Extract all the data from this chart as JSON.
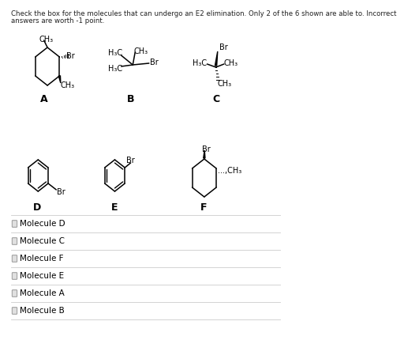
{
  "title_line1": "Check the box for the molecules that can undergo an E2 elimination. Only 2 of the 6 shown are able to. Incorrect",
  "title_line2": "answers are worth -1 point.",
  "background_color": "#ffffff",
  "text_color": "#000000",
  "checkbox_items": [
    "Molecule D",
    "Molecule C",
    "Molecule F",
    "Molecule E",
    "Molecule A",
    "Molecule B"
  ],
  "mol_A_label": "A",
  "mol_B_label": "B",
  "mol_C_label": "C",
  "mol_D_label": "D",
  "mol_E_label": "E",
  "mol_F_label": "F"
}
